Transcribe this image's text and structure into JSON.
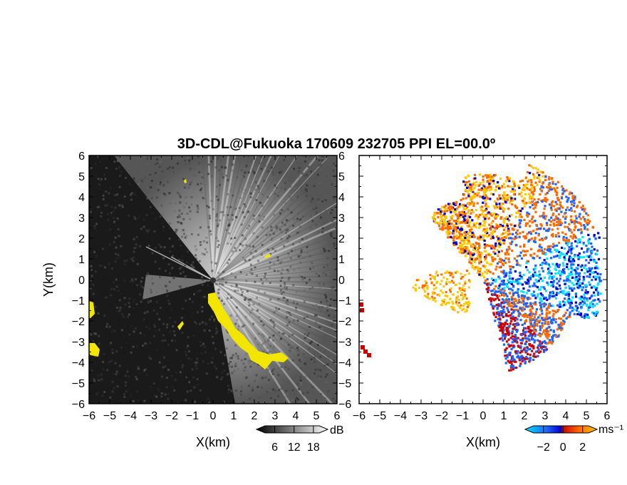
{
  "chart_data": {
    "title": "3D-CDL@Fukuoka 170609 232705 PPI EL=00.0º",
    "panels": [
      {
        "type": "heatmap",
        "quantity": "radar echo intensity (PPI)",
        "xlabel": "X(km)",
        "ylabel": "Y(km)",
        "xlim": [
          -6,
          6
        ],
        "ylim": [
          -6,
          6
        ],
        "xticks": [
          -6,
          -5,
          -4,
          -3,
          -2,
          -1,
          0,
          1,
          2,
          3,
          4,
          5,
          6
        ],
        "yticks": [
          -6,
          -5,
          -4,
          -3,
          -2,
          -1,
          0,
          1,
          2,
          3,
          4,
          5,
          6
        ],
        "colormap": "grayscale",
        "colorbar": {
          "ticks": [
            6,
            12,
            18
          ],
          "unit": "dB"
        },
        "highlight_color": "#f2e600",
        "background_color": "#1a1a1a"
      },
      {
        "type": "heatmap",
        "quantity": "Doppler velocity (PPI)",
        "xlabel": "X(km)",
        "ylabel": "",
        "xlim": [
          -6,
          6
        ],
        "ylim": [
          -6,
          6
        ],
        "xticks": [
          -6,
          -5,
          -4,
          -3,
          -2,
          -1,
          0,
          1,
          2,
          3,
          4,
          5,
          6
        ],
        "yticks": [
          -6,
          -5,
          -4,
          -3,
          -2,
          -1,
          0,
          1,
          2,
          3,
          4,
          5,
          6
        ],
        "colormap": "diverging cyan-blue-red-yellow",
        "colorbar": {
          "ticks": [
            -2,
            0,
            2
          ],
          "unit": "ms⁻¹"
        },
        "palette": [
          "#00e5ff",
          "#1e64ff",
          "#0000cc",
          "#cc0000",
          "#ff6a00",
          "#ffc800"
        ],
        "background_color": "#ffffff"
      }
    ]
  }
}
